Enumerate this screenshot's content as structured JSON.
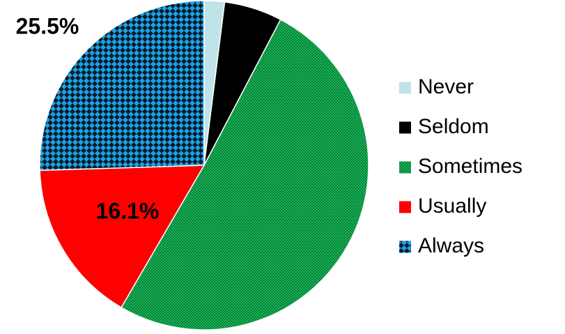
{
  "chart_data": {
    "type": "pie",
    "categories": [
      "Never",
      "Seldom",
      "Sometimes",
      "Usually",
      "Always"
    ],
    "values": [
      2.0,
      5.7,
      50.7,
      16.1,
      25.5
    ],
    "data_labels": [
      {
        "category": "Always",
        "text": "25.5%"
      },
      {
        "category": "Usually",
        "text": "16.1%"
      }
    ],
    "legend": {
      "placement": "right",
      "entries": [
        "Never",
        "Seldom",
        "Sometimes",
        "Usually",
        "Always"
      ]
    },
    "colors": {
      "Never": "#bfe3e8",
      "Seldom": "#000000",
      "Sometimes": "#13a84f",
      "Usually": "#ff0000",
      "Always": "#1aa3e6"
    },
    "patterns": {
      "Never": "solid",
      "Seldom": "solid",
      "Sometimes": "dotted",
      "Usually": "solid",
      "Always": "checkered"
    },
    "start_angle": "12 o'clock",
    "direction": "clockwise"
  }
}
